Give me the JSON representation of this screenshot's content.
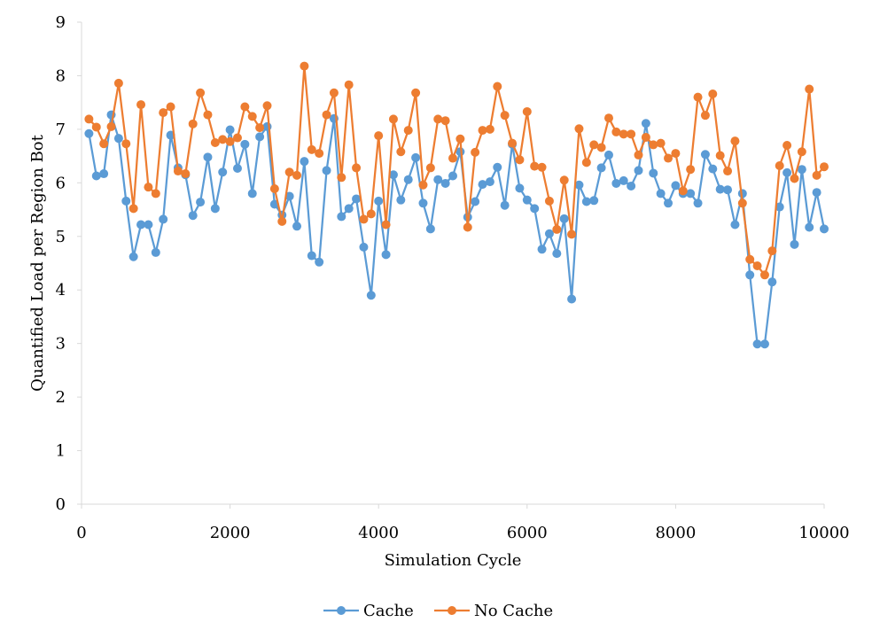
{
  "chart_data": {
    "type": "line",
    "title": "",
    "xlabel": "Simulation Cycle",
    "ylabel": "Quantified Load per Region Bot",
    "xlim": [
      0,
      10000
    ],
    "ylim": [
      0,
      9
    ],
    "xticks": [
      0,
      2000,
      4000,
      6000,
      8000,
      10000
    ],
    "yticks": [
      0,
      1,
      2,
      3,
      4,
      5,
      6,
      7,
      8,
      9
    ],
    "grid": false,
    "legend": "bottom",
    "x": [
      100,
      200,
      300,
      400,
      500,
      600,
      700,
      800,
      900,
      1000,
      1100,
      1200,
      1300,
      1400,
      1500,
      1600,
      1700,
      1800,
      1900,
      2000,
      2100,
      2200,
      2300,
      2400,
      2500,
      2600,
      2700,
      2800,
      2900,
      3000,
      3100,
      3200,
      3300,
      3400,
      3500,
      3600,
      3700,
      3800,
      3900,
      4000,
      4100,
      4200,
      4300,
      4400,
      4500,
      4600,
      4700,
      4800,
      4900,
      5000,
      5100,
      5200,
      5300,
      5400,
      5500,
      5600,
      5700,
      5800,
      5900,
      6000,
      6100,
      6200,
      6300,
      6400,
      6500,
      6600,
      6700,
      6800,
      6900,
      7000,
      7100,
      7200,
      7300,
      7400,
      7500,
      7600,
      7700,
      7800,
      7900,
      8000,
      8100,
      8200,
      8300,
      8400,
      8500,
      8600,
      8700,
      8800,
      8900,
      9000,
      9100,
      9200,
      9300,
      9400,
      9500,
      9600,
      9700,
      9800,
      9900,
      10000
    ],
    "series": [
      {
        "name": "Cache",
        "color": "#5B9BD5",
        "values": [
          6.92,
          6.13,
          6.17,
          7.27,
          6.83,
          5.66,
          4.62,
          5.22,
          5.22,
          4.7,
          5.32,
          6.89,
          6.28,
          6.15,
          5.39,
          5.64,
          6.48,
          5.52,
          6.2,
          6.99,
          6.27,
          6.72,
          5.8,
          6.86,
          7.05,
          5.6,
          5.4,
          5.75,
          5.19,
          6.4,
          4.64,
          4.52,
          6.23,
          7.2,
          5.37,
          5.52,
          5.7,
          4.8,
          3.9,
          5.66,
          4.66,
          6.15,
          5.68,
          6.06,
          6.47,
          5.62,
          5.14,
          6.06,
          5.99,
          6.13,
          6.58,
          5.36,
          5.65,
          5.97,
          6.02,
          6.29,
          5.58,
          6.72,
          5.9,
          5.68,
          5.52,
          4.76,
          5.05,
          4.68,
          5.33,
          3.83,
          5.96,
          5.65,
          5.67,
          6.28,
          6.52,
          5.99,
          6.04,
          5.94,
          6.23,
          7.11,
          6.18,
          5.8,
          5.62,
          5.95,
          5.8,
          5.8,
          5.62,
          6.53,
          6.26,
          5.88,
          5.87,
          5.22,
          5.8,
          4.28,
          2.99,
          2.99,
          4.15,
          5.55,
          6.19,
          4.85,
          6.25,
          5.17,
          5.82,
          5.14
        ]
      },
      {
        "name": "No Cache",
        "color": "#ED7D31",
        "values": [
          7.19,
          7.04,
          6.73,
          7.05,
          7.86,
          6.73,
          5.52,
          7.46,
          5.92,
          5.8,
          7.31,
          7.42,
          6.22,
          6.17,
          7.1,
          7.68,
          7.27,
          6.75,
          6.81,
          6.77,
          6.84,
          7.42,
          7.24,
          7.03,
          7.44,
          5.89,
          5.28,
          6.2,
          6.14,
          8.18,
          6.62,
          6.55,
          7.27,
          7.68,
          6.1,
          7.83,
          6.28,
          5.32,
          5.42,
          6.88,
          5.22,
          7.19,
          6.58,
          6.98,
          7.68,
          5.96,
          6.28,
          7.19,
          7.16,
          6.46,
          6.82,
          5.17,
          6.57,
          6.98,
          7.0,
          7.8,
          7.26,
          6.74,
          6.43,
          7.33,
          6.31,
          6.29,
          5.66,
          5.13,
          6.05,
          5.04,
          7.01,
          6.38,
          6.71,
          6.66,
          7.21,
          6.95,
          6.91,
          6.91,
          6.52,
          6.85,
          6.71,
          6.74,
          6.46,
          6.55,
          5.85,
          6.25,
          7.6,
          7.26,
          7.66,
          6.51,
          6.22,
          6.78,
          5.62,
          4.57,
          4.45,
          4.28,
          4.73,
          6.32,
          6.7,
          6.08,
          6.58,
          7.75,
          6.14,
          6.3
        ]
      }
    ]
  }
}
